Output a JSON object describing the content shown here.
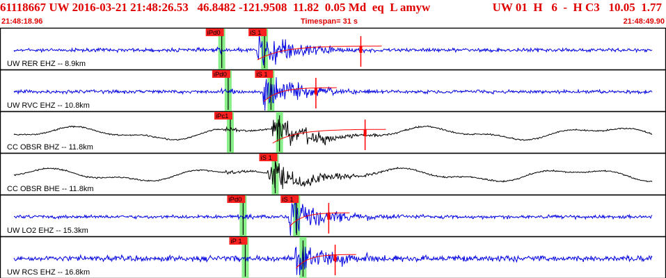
{
  "header": {
    "event_info": "61118667 UW 2016-03-21 21:48:26.53   46.8482 -121.9508  11.82  0.05 Md  eq  L amyw",
    "network_info": "UW 01  H   6  -  H C3   10.05  1.77"
  },
  "timebar": {
    "start": "21:48:18.96",
    "timespan": "Timespan=  31 s",
    "end": "21:48:49.90"
  },
  "colors": {
    "header_text": "#e00000",
    "trace_blue": "#0000e0",
    "trace_black": "#000000",
    "pick_box": "#ff2020",
    "pick_window": "#88ee88",
    "coda": "#ff0000"
  },
  "panels": [
    {
      "label": "UW RER EHZ -- 8.9km",
      "color": "blue",
      "picks": [
        {
          "label": "iPd0",
          "kind": "P",
          "time": 10.3
        },
        {
          "label": "iS 1",
          "kind": "S",
          "time": 12.3
        }
      ],
      "coda_end": 16.8
    },
    {
      "label": "UW RVC EHZ -- 10.8km",
      "color": "blue",
      "picks": [
        {
          "label": "iPd0",
          "kind": "P",
          "time": 10.6
        },
        {
          "label": "iS 1",
          "kind": "S",
          "time": 12.6
        }
      ],
      "coda_end": 14.7
    },
    {
      "label": "CC OBSR BHZ -- 11.8km",
      "color": "black",
      "picks": [
        {
          "label": "iPc1",
          "kind": "P",
          "time": 10.7
        },
        {
          "label": "",
          "kind": "S",
          "time": 13.0
        }
      ],
      "coda_end": 17.0
    },
    {
      "label": "CC OBSR BHE -- 11.8km",
      "color": "black",
      "picks": [
        {
          "label": "iS 1",
          "kind": "S",
          "time": 12.8
        }
      ],
      "coda_end": null
    },
    {
      "label": "UW LO2 EHZ -- 15.3km",
      "color": "blue",
      "picks": [
        {
          "label": "iPd0",
          "kind": "P",
          "time": 11.3
        },
        {
          "label": "iS 1",
          "kind": "S",
          "time": 13.8
        }
      ],
      "coda_end": 15.3
    },
    {
      "label": "UW RCS EHZ -- 16.8km",
      "color": "blue",
      "picks": [
        {
          "label": "iP 1",
          "kind": "P",
          "time": 11.4
        },
        {
          "label": "",
          "kind": "S",
          "time": 14.1
        }
      ],
      "coda_end": 15.6
    }
  ]
}
